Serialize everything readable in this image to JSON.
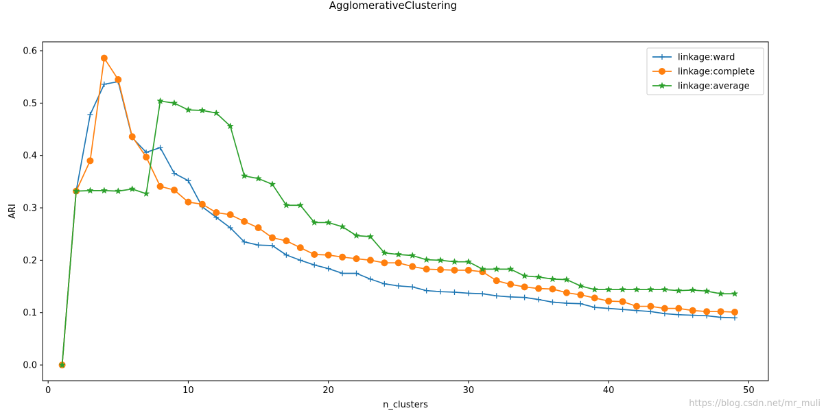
{
  "chart_data": {
    "type": "line",
    "title": "AgglomerativeClustering",
    "xlabel": "n_clusters",
    "ylabel": "ARI",
    "xlim": [
      -0.4,
      51.4
    ],
    "ylim": [
      -0.03,
      0.617
    ],
    "xticks": [
      0,
      10,
      20,
      30,
      40,
      50
    ],
    "xtick_labels": [
      "0",
      "10",
      "20",
      "30",
      "40",
      "50"
    ],
    "yticks": [
      0.0,
      0.1,
      0.2,
      0.3,
      0.4,
      0.5,
      0.6
    ],
    "ytick_labels": [
      "0.0",
      "0.1",
      "0.2",
      "0.3",
      "0.4",
      "0.5",
      "0.6"
    ],
    "grid": false,
    "legend_position": "top-right",
    "x": [
      1,
      2,
      3,
      4,
      5,
      6,
      7,
      8,
      9,
      10,
      11,
      12,
      13,
      14,
      15,
      16,
      17,
      18,
      19,
      20,
      21,
      22,
      23,
      24,
      25,
      26,
      27,
      28,
      29,
      30,
      31,
      32,
      33,
      34,
      35,
      36,
      37,
      38,
      39,
      40,
      41,
      42,
      43,
      44,
      45,
      46,
      47,
      48,
      49
    ],
    "series": [
      {
        "name": "linkage:ward",
        "color": "#1f77b4",
        "marker": "plus",
        "values": [
          0.0,
          0.332,
          0.478,
          0.536,
          0.541,
          0.434,
          0.406,
          0.415,
          0.366,
          0.352,
          0.302,
          0.282,
          0.262,
          0.235,
          0.229,
          0.228,
          0.21,
          0.2,
          0.191,
          0.184,
          0.175,
          0.175,
          0.164,
          0.155,
          0.151,
          0.149,
          0.142,
          0.14,
          0.139,
          0.137,
          0.136,
          0.132,
          0.13,
          0.129,
          0.125,
          0.12,
          0.118,
          0.117,
          0.11,
          0.108,
          0.106,
          0.104,
          0.102,
          0.098,
          0.096,
          0.095,
          0.094,
          0.091,
          0.09
        ]
      },
      {
        "name": "linkage:complete",
        "color": "#ff7f0e",
        "marker": "circle",
        "values": [
          0.0,
          0.332,
          0.39,
          0.586,
          0.545,
          0.436,
          0.397,
          0.341,
          0.334,
          0.311,
          0.307,
          0.291,
          0.287,
          0.274,
          0.262,
          0.243,
          0.237,
          0.224,
          0.211,
          0.21,
          0.206,
          0.203,
          0.2,
          0.195,
          0.195,
          0.188,
          0.183,
          0.182,
          0.181,
          0.181,
          0.178,
          0.161,
          0.154,
          0.149,
          0.146,
          0.145,
          0.138,
          0.134,
          0.128,
          0.122,
          0.121,
          0.112,
          0.112,
          0.108,
          0.108,
          0.104,
          0.102,
          0.102,
          0.101
        ]
      },
      {
        "name": "linkage:average",
        "color": "#2ca02c",
        "marker": "star",
        "values": [
          0.0,
          0.332,
          0.333,
          0.333,
          0.332,
          0.336,
          0.327,
          0.504,
          0.5,
          0.487,
          0.486,
          0.481,
          0.456,
          0.361,
          0.356,
          0.345,
          0.305,
          0.305,
          0.272,
          0.272,
          0.264,
          0.247,
          0.245,
          0.214,
          0.211,
          0.209,
          0.201,
          0.2,
          0.197,
          0.197,
          0.183,
          0.183,
          0.183,
          0.17,
          0.168,
          0.164,
          0.163,
          0.151,
          0.144,
          0.144,
          0.144,
          0.144,
          0.144,
          0.144,
          0.142,
          0.143,
          0.141,
          0.136,
          0.136
        ]
      }
    ]
  },
  "watermark": "https://blog.csdn.net/mr_muli"
}
